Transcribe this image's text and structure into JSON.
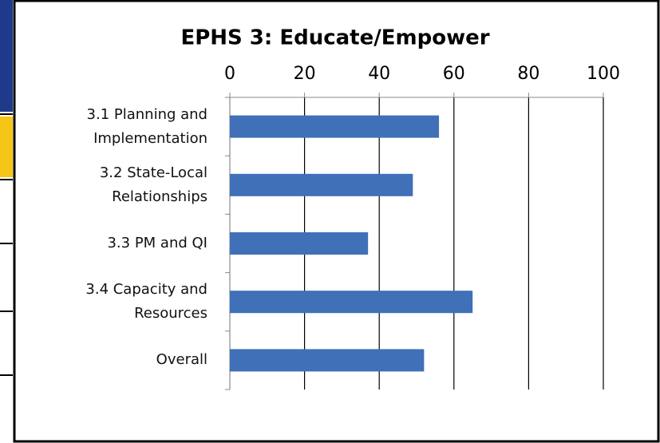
{
  "chart_data": {
    "type": "bar",
    "orientation": "horizontal",
    "title": "EPHS 3: Educate/Empower",
    "categories": [
      "3.1 Planning and Implementation",
      "3.2 State-Local Relationships",
      "3.3 PM and QI",
      "3.4 Capacity and Resources",
      "Overall"
    ],
    "values": [
      56,
      49,
      37,
      65,
      52
    ],
    "color": "#3f70b8",
    "xlim": [
      0,
      100
    ],
    "xticks": [
      0,
      20,
      40,
      60,
      80,
      100
    ],
    "grid": true
  }
}
